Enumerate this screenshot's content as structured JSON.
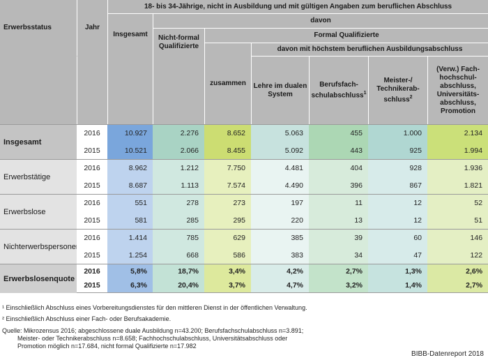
{
  "header": {
    "group_title": "18- bis 34-Jährige, nicht in Ausbildung und mit gültigen Angaben zum beruflichen Abschluss",
    "davon": "davon",
    "formal_qualifizierte": "Formal Qualifizierte",
    "davon_hoechstem": "davon mit höchstem beruflichen Ausbildungsabschluss",
    "erwerbsstatus": "Erwerbsstatus",
    "jahr": "Jahr",
    "insgesamt": "Insgesamt",
    "nicht_formal": "Nicht-formal Qualifizierte",
    "zusammen": "zusammen",
    "lehre": "Lehre im dualen System",
    "berufsfach": "Berufsfach-schulabschluss",
    "berufsfach_sup": "1",
    "meister": "Meister-/ Technikerab-schluss",
    "meister_sup": "2",
    "fach": "(Verw.) Fach-hochschul-abschluss, Universitäts-abschluss, Promotion"
  },
  "groups": [
    {
      "label": "Insgesamt",
      "rows": [
        {
          "year": "2016",
          "values": [
            "10.927",
            "2.276",
            "8.652",
            "5.063",
            "455",
            "1.000",
            "2.134"
          ]
        },
        {
          "year": "2015",
          "values": [
            "10.521",
            "2.066",
            "8.455",
            "5.092",
            "443",
            "925",
            "1.994"
          ]
        }
      ]
    },
    {
      "label": "Erwerbstätige",
      "rows": [
        {
          "year": "2016",
          "values": [
            "8.962",
            "1.212",
            "7.750",
            "4.481",
            "404",
            "928",
            "1.936"
          ]
        },
        {
          "year": "2015",
          "values": [
            "8.687",
            "1.113",
            "7.574",
            "4.490",
            "396",
            "867",
            "1.821"
          ]
        }
      ]
    },
    {
      "label": "Erwerbslose",
      "rows": [
        {
          "year": "2016",
          "values": [
            "551",
            "278",
            "273",
            "197",
            "11",
            "12",
            "52"
          ]
        },
        {
          "year": "2015",
          "values": [
            "581",
            "285",
            "295",
            "220",
            "13",
            "12",
            "51"
          ]
        }
      ]
    },
    {
      "label": "Nichterwerbspersonen",
      "rows": [
        {
          "year": "2016",
          "values": [
            "1.414",
            "785",
            "629",
            "385",
            "39",
            "60",
            "146"
          ]
        },
        {
          "year": "2015",
          "values": [
            "1.254",
            "668",
            "586",
            "383",
            "34",
            "47",
            "122"
          ]
        }
      ]
    },
    {
      "label": "Erwerbslosenquote",
      "rows": [
        {
          "year": "2016",
          "values": [
            "5,8%",
            "18,7%",
            "3,4%",
            "4,2%",
            "2,7%",
            "1,3%",
            "2,6%"
          ]
        },
        {
          "year": "2015",
          "values": [
            "6,3%",
            "20,4%",
            "3,7%",
            "4,7%",
            "3,2%",
            "1,4%",
            "2,7%"
          ]
        }
      ]
    }
  ],
  "footnotes": {
    "f1": "¹ Einschließlich Abschluss eines Vorbereitungsdienstes für den mittleren Dienst in der öffentlichen Verwaltung.",
    "f2": "² Einschließlich Abschluss einer Fach- oder Berufsakademie."
  },
  "source": {
    "line1": "Quelle: Mikrozensus 2016; abgeschlossene duale Ausbildung n=43.200; Berufsfachschulabschluss n=3.891;",
    "line2": "Meister- oder Technikerabschluss n=8.658; Fachhochschulabschluss, Universitätsabschluss oder",
    "line3": "Promotion möglich n=17.684, nicht formal Qualifizierte n=17.982"
  },
  "credit": "BIBB-Datenreport 2018"
}
